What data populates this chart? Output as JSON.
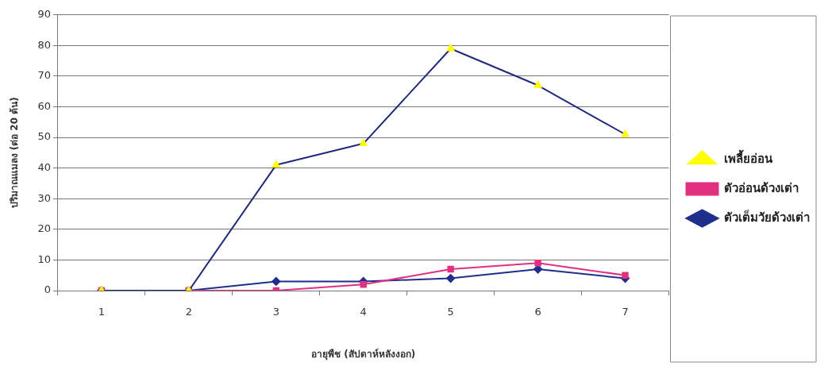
{
  "chart_data": {
    "type": "line",
    "xlabel": "อายุพืช (สัปดาห์หลังงอก)",
    "ylabel": "ปริมาณแมลง (ต่อ 20 ต้น)",
    "categories": [
      "1",
      "2",
      "3",
      "4",
      "5",
      "6",
      "7"
    ],
    "series": [
      {
        "name": "ตัวเต็มวัยด้วงเต่า",
        "color": "#1f2f8c",
        "marker": "diamond",
        "values": [
          0,
          0,
          3,
          3,
          4,
          7,
          4
        ]
      },
      {
        "name": "ตัวอ่อนด้วงเต่า",
        "color": "#e0307f",
        "marker": "square",
        "values": [
          0,
          0,
          0,
          2,
          7,
          9,
          5
        ]
      },
      {
        "name": "เพลี้ยอ่อน",
        "color": "#1f2a78",
        "colors": [
          "#ffff00",
          "#ffff00",
          "#ffff00",
          "#ffff00",
          "#ffff00",
          "#ffff00",
          "#ffff00"
        ],
        "marker": "triangle",
        "values": [
          0,
          0,
          41,
          48,
          79,
          67,
          51
        ]
      }
    ],
    "ylim": [
      0,
      90
    ],
    "yticks": [
      0,
      10,
      20,
      30,
      40,
      50,
      60,
      70,
      80,
      90
    ],
    "grid": "y",
    "legend": "right"
  }
}
